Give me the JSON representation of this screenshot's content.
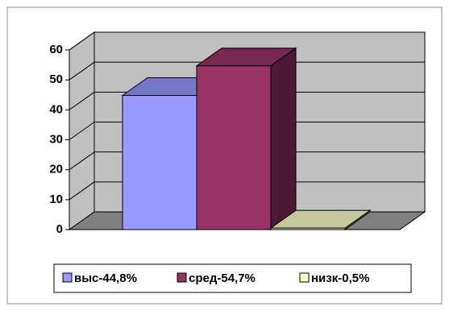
{
  "chart_data": {
    "type": "bar3d",
    "series": [
      {
        "name": "выс-44,8%",
        "color": "#9999ff",
        "values": [
          44.8
        ]
      },
      {
        "name": "сред-54,7%",
        "color": "#993366",
        "values": [
          54.7
        ]
      },
      {
        "name": "низк-0,5%",
        "color": "#ffffcc",
        "values": [
          0.5
        ]
      }
    ],
    "ylim": [
      0,
      60
    ],
    "yticks": [
      0,
      10,
      20,
      30,
      40,
      50,
      60
    ],
    "grid": true,
    "legend": "bottom"
  }
}
